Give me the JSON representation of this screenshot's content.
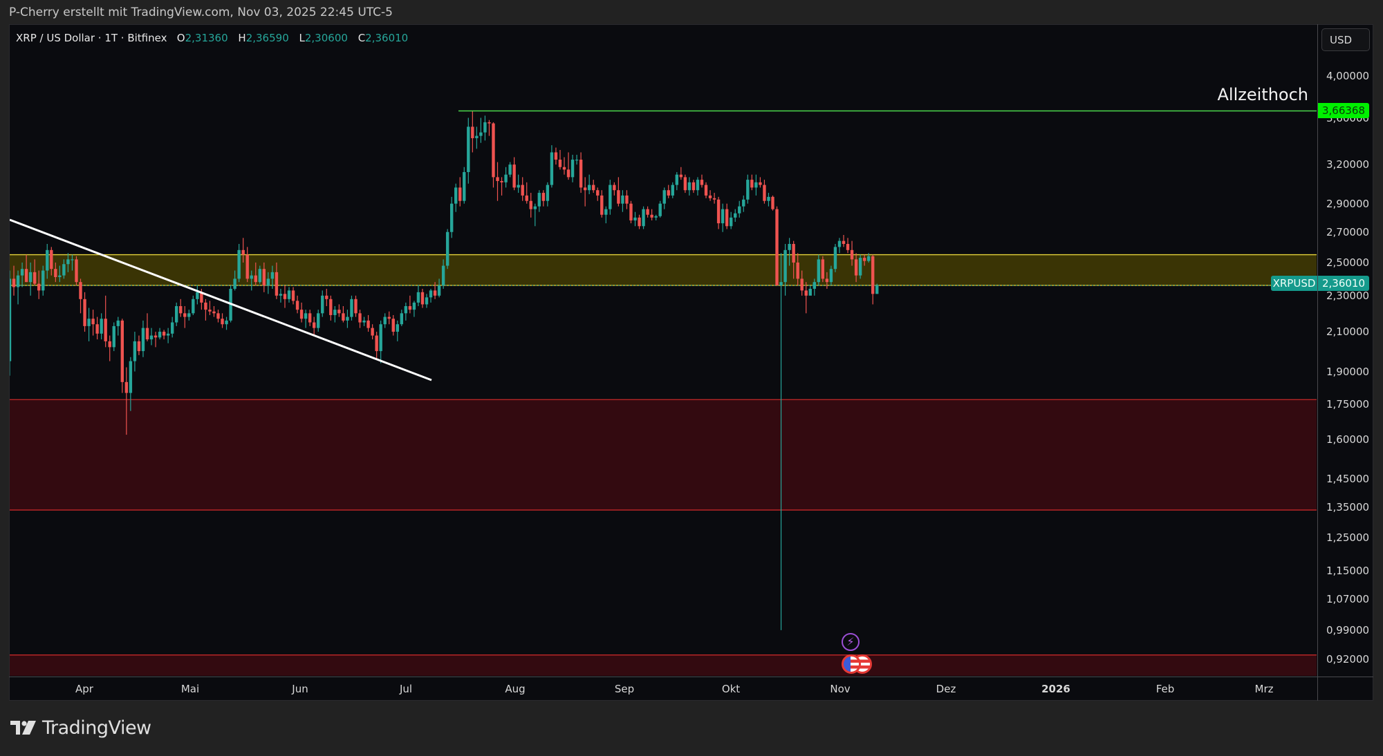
{
  "credit": "P-Cherry erstellt mit TradingView.com, Nov 03, 2025 22:45 UTC-5",
  "legend": {
    "title": "XRP / US Dollar · 1T · Bitfinex",
    "open_label": "O",
    "open": "2,31360",
    "high_label": "H",
    "high": "2,36590",
    "low_label": "L",
    "low": "2,30600",
    "close_label": "C",
    "close": "2,36010"
  },
  "currency_button": "USD",
  "annotation_ath": "Allzeithoch",
  "ath_price": "3,66368",
  "symbol_badge": "XRPUSD",
  "last_price": "2,36010",
  "footer_brand": "TradingView",
  "colors": {
    "up": "#26a69a",
    "down": "#ef5350",
    "ath_line": "#4cd94c",
    "zone_yellow": "#e6d43a",
    "zone_red": "#b71c1c",
    "trendline": "#ffffff"
  },
  "chart_data": {
    "type": "candlestick",
    "title": "XRP / US Dollar · 1T · Bitfinex",
    "scale": "log",
    "y_ticks": [
      "4,00000",
      "3,60000",
      "3,20000",
      "2,90000",
      "2,70000",
      "2,50000",
      "2,30000",
      "2,10000",
      "1,90000",
      "1,75000",
      "1,60000",
      "1,45000",
      "1,35000",
      "1,25000",
      "1,15000",
      "1,07000",
      "0,99000",
      "0,92000"
    ],
    "x_ticks": [
      "Apr",
      "Mai",
      "Jun",
      "Jul",
      "Aug",
      "Sep",
      "Okt",
      "Nov",
      "Dez",
      "2026",
      "Feb",
      "Mrz"
    ],
    "last": {
      "open": 2.3136,
      "high": 2.3659,
      "low": 2.306,
      "close": 2.3601
    },
    "all_time_high": 3.66368,
    "zones": [
      {
        "name": "yellow-support-zone",
        "top": 2.55,
        "bottom": 2.36
      },
      {
        "name": "red-demand-zone",
        "top": 1.77,
        "bottom": 1.34
      },
      {
        "name": "red-lower-zone",
        "top": 0.93,
        "bottom": 0.87
      }
    ],
    "trendline": {
      "from": {
        "date": "Mar 10",
        "price": 2.78
      },
      "to": {
        "date": "Jul 2",
        "price": 1.85
      }
    },
    "ohlc": [
      [
        1.95,
        2.45,
        1.88,
        2.4
      ],
      [
        2.4,
        2.48,
        2.3,
        2.35
      ],
      [
        2.35,
        2.45,
        2.25,
        2.42
      ],
      [
        2.42,
        2.5,
        2.35,
        2.46
      ],
      [
        2.46,
        2.55,
        2.38,
        2.38
      ],
      [
        2.38,
        2.5,
        2.3,
        2.44
      ],
      [
        2.44,
        2.52,
        2.36,
        2.37
      ],
      [
        2.37,
        2.45,
        2.28,
        2.33
      ],
      [
        2.33,
        2.48,
        2.3,
        2.45
      ],
      [
        2.45,
        2.62,
        2.4,
        2.58
      ],
      [
        2.58,
        2.6,
        2.42,
        2.46
      ],
      [
        2.46,
        2.5,
        2.38,
        2.41
      ],
      [
        2.41,
        2.48,
        2.38,
        2.42
      ],
      [
        2.42,
        2.52,
        2.4,
        2.49
      ],
      [
        2.49,
        2.56,
        2.44,
        2.52
      ],
      [
        2.52,
        2.55,
        2.45,
        2.52
      ],
      [
        2.52,
        2.54,
        2.36,
        2.38
      ],
      [
        2.38,
        2.4,
        2.2,
        2.28
      ],
      [
        2.28,
        2.32,
        2.1,
        2.13
      ],
      [
        2.13,
        2.23,
        2.05,
        2.17
      ],
      [
        2.17,
        2.22,
        2.08,
        2.14
      ],
      [
        2.14,
        2.18,
        2.06,
        2.09
      ],
      [
        2.09,
        2.2,
        2.06,
        2.17
      ],
      [
        2.17,
        2.3,
        2.02,
        2.05
      ],
      [
        2.05,
        2.08,
        1.95,
        2.02
      ],
      [
        2.02,
        2.15,
        2.0,
        2.13
      ],
      [
        2.13,
        2.18,
        2.08,
        2.16
      ],
      [
        2.16,
        2.17,
        1.8,
        1.85
      ],
      [
        1.85,
        1.92,
        1.62,
        1.8
      ],
      [
        1.8,
        1.97,
        1.72,
        1.95
      ],
      [
        1.95,
        2.1,
        1.9,
        2.05
      ],
      [
        2.05,
        2.08,
        1.98,
        2.0
      ],
      [
        2.0,
        2.16,
        1.97,
        2.12
      ],
      [
        2.12,
        2.2,
        2.05,
        2.06
      ],
      [
        2.06,
        2.12,
        2.03,
        2.08
      ],
      [
        2.08,
        2.1,
        2.02,
        2.07
      ],
      [
        2.07,
        2.12,
        2.06,
        2.1
      ],
      [
        2.1,
        2.11,
        2.06,
        2.08
      ],
      [
        2.08,
        2.12,
        2.04,
        2.09
      ],
      [
        2.09,
        2.18,
        2.07,
        2.15
      ],
      [
        2.15,
        2.26,
        2.13,
        2.24
      ],
      [
        2.24,
        2.28,
        2.18,
        2.2
      ],
      [
        2.2,
        2.24,
        2.12,
        2.18
      ],
      [
        2.18,
        2.22,
        2.16,
        2.2
      ],
      [
        2.2,
        2.3,
        2.19,
        2.28
      ],
      [
        2.28,
        2.36,
        2.25,
        2.32
      ],
      [
        2.32,
        2.34,
        2.22,
        2.26
      ],
      [
        2.26,
        2.28,
        2.16,
        2.22
      ],
      [
        2.22,
        2.27,
        2.19,
        2.21
      ],
      [
        2.21,
        2.24,
        2.18,
        2.2
      ],
      [
        2.2,
        2.22,
        2.15,
        2.17
      ],
      [
        2.17,
        2.2,
        2.12,
        2.14
      ],
      [
        2.14,
        2.18,
        2.11,
        2.16
      ],
      [
        2.16,
        2.36,
        2.15,
        2.34
      ],
      [
        2.34,
        2.45,
        2.33,
        2.4
      ],
      [
        2.4,
        2.62,
        2.38,
        2.58
      ],
      [
        2.58,
        2.66,
        2.5,
        2.55
      ],
      [
        2.55,
        2.6,
        2.38,
        2.4
      ],
      [
        2.4,
        2.45,
        2.33,
        2.42
      ],
      [
        2.42,
        2.5,
        2.36,
        2.38
      ],
      [
        2.38,
        2.48,
        2.37,
        2.46
      ],
      [
        2.46,
        2.5,
        2.32,
        2.36
      ],
      [
        2.36,
        2.44,
        2.31,
        2.4
      ],
      [
        2.4,
        2.48,
        2.34,
        2.44
      ],
      [
        2.44,
        2.5,
        2.28,
        2.3
      ],
      [
        2.3,
        2.34,
        2.26,
        2.31
      ],
      [
        2.31,
        2.36,
        2.23,
        2.28
      ],
      [
        2.28,
        2.35,
        2.26,
        2.33
      ],
      [
        2.33,
        2.35,
        2.25,
        2.27
      ],
      [
        2.27,
        2.3,
        2.2,
        2.22
      ],
      [
        2.22,
        2.26,
        2.15,
        2.17
      ],
      [
        2.17,
        2.22,
        2.12,
        2.2
      ],
      [
        2.2,
        2.22,
        2.13,
        2.15
      ],
      [
        2.15,
        2.18,
        2.08,
        2.12
      ],
      [
        2.12,
        2.22,
        2.1,
        2.2
      ],
      [
        2.2,
        2.33,
        2.18,
        2.3
      ],
      [
        2.3,
        2.34,
        2.24,
        2.28
      ],
      [
        2.28,
        2.3,
        2.16,
        2.19
      ],
      [
        2.19,
        2.24,
        2.15,
        2.22
      ],
      [
        2.22,
        2.25,
        2.18,
        2.2
      ],
      [
        2.2,
        2.24,
        2.15,
        2.16
      ],
      [
        2.16,
        2.22,
        2.12,
        2.18
      ],
      [
        2.18,
        2.3,
        2.16,
        2.28
      ],
      [
        2.28,
        2.3,
        2.18,
        2.2
      ],
      [
        2.2,
        2.22,
        2.12,
        2.15
      ],
      [
        2.15,
        2.18,
        2.13,
        2.16
      ],
      [
        2.16,
        2.19,
        2.1,
        2.12
      ],
      [
        2.12,
        2.14,
        2.06,
        2.08
      ],
      [
        2.08,
        2.1,
        1.96,
        2.0
      ],
      [
        2.0,
        2.16,
        1.94,
        2.14
      ],
      [
        2.14,
        2.2,
        2.12,
        2.18
      ],
      [
        2.18,
        2.21,
        2.14,
        2.17
      ],
      [
        2.17,
        2.19,
        2.08,
        2.1
      ],
      [
        2.1,
        2.16,
        2.05,
        2.14
      ],
      [
        2.14,
        2.22,
        2.13,
        2.2
      ],
      [
        2.2,
        2.26,
        2.16,
        2.24
      ],
      [
        2.24,
        2.3,
        2.2,
        2.22
      ],
      [
        2.22,
        2.27,
        2.18,
        2.26
      ],
      [
        2.26,
        2.36,
        2.24,
        2.32
      ],
      [
        2.32,
        2.34,
        2.23,
        2.25
      ],
      [
        2.25,
        2.31,
        2.23,
        2.29
      ],
      [
        2.29,
        2.34,
        2.26,
        2.33
      ],
      [
        2.33,
        2.38,
        2.28,
        2.3
      ],
      [
        2.3,
        2.4,
        2.29,
        2.36
      ],
      [
        2.36,
        2.52,
        2.34,
        2.48
      ],
      [
        2.48,
        2.72,
        2.46,
        2.7
      ],
      [
        2.7,
        2.95,
        2.66,
        2.9
      ],
      [
        2.9,
        3.05,
        2.84,
        3.02
      ],
      [
        3.02,
        3.1,
        2.88,
        2.92
      ],
      [
        2.92,
        3.18,
        2.9,
        3.14
      ],
      [
        3.14,
        3.6,
        3.05,
        3.52
      ],
      [
        3.52,
        3.66,
        3.3,
        3.42
      ],
      [
        3.42,
        3.52,
        3.33,
        3.44
      ],
      [
        3.44,
        3.6,
        3.38,
        3.47
      ],
      [
        3.47,
        3.62,
        3.4,
        3.56
      ],
      [
        3.56,
        3.58,
        3.44,
        3.55
      ],
      [
        3.55,
        3.56,
        3.02,
        3.1
      ],
      [
        3.1,
        3.22,
        2.92,
        3.07
      ],
      [
        3.07,
        3.1,
        2.96,
        3.06
      ],
      [
        3.06,
        3.18,
        3.02,
        3.12
      ],
      [
        3.12,
        3.22,
        3.1,
        3.2
      ],
      [
        3.2,
        3.26,
        3.0,
        3.02
      ],
      [
        3.02,
        3.12,
        2.98,
        3.04
      ],
      [
        3.04,
        3.1,
        2.92,
        2.96
      ],
      [
        2.96,
        3.06,
        2.9,
        2.92
      ],
      [
        2.92,
        2.98,
        2.8,
        2.86
      ],
      [
        2.86,
        2.9,
        2.74,
        2.88
      ],
      [
        2.88,
        3.0,
        2.84,
        2.98
      ],
      [
        2.98,
        3.0,
        2.88,
        2.92
      ],
      [
        2.92,
        3.06,
        2.88,
        3.04
      ],
      [
        3.04,
        3.36,
        3.02,
        3.3
      ],
      [
        3.3,
        3.34,
        3.2,
        3.24
      ],
      [
        3.24,
        3.32,
        3.16,
        3.18
      ],
      [
        3.18,
        3.26,
        3.12,
        3.16
      ],
      [
        3.16,
        3.3,
        3.08,
        3.1
      ],
      [
        3.1,
        3.28,
        3.06,
        3.24
      ],
      [
        3.24,
        3.28,
        3.2,
        3.24
      ],
      [
        3.24,
        3.3,
        2.98,
        3.02
      ],
      [
        3.02,
        3.1,
        2.88,
        3.0
      ],
      [
        3.0,
        3.12,
        2.97,
        3.04
      ],
      [
        3.04,
        3.08,
        2.98,
        3.0
      ],
      [
        3.0,
        3.02,
        2.92,
        2.96
      ],
      [
        2.96,
        3.0,
        2.8,
        2.82
      ],
      [
        2.82,
        2.88,
        2.76,
        2.86
      ],
      [
        2.86,
        3.08,
        2.82,
        3.04
      ],
      [
        3.04,
        3.06,
        2.96,
        3.0
      ],
      [
        3.0,
        3.1,
        2.88,
        2.9
      ],
      [
        2.9,
        3.0,
        2.84,
        2.96
      ],
      [
        2.96,
        3.0,
        2.86,
        2.9
      ],
      [
        2.9,
        2.92,
        2.76,
        2.78
      ],
      [
        2.78,
        2.84,
        2.74,
        2.8
      ],
      [
        2.8,
        2.82,
        2.72,
        2.74
      ],
      [
        2.74,
        2.88,
        2.72,
        2.86
      ],
      [
        2.86,
        2.88,
        2.8,
        2.82
      ],
      [
        2.82,
        2.86,
        2.78,
        2.8
      ],
      [
        2.8,
        2.82,
        2.78,
        2.81
      ],
      [
        2.81,
        2.92,
        2.8,
        2.9
      ],
      [
        2.9,
        3.02,
        2.86,
        3.0
      ],
      [
        3.0,
        3.04,
        2.94,
        2.96
      ],
      [
        2.96,
        3.06,
        2.94,
        3.04
      ],
      [
        3.04,
        3.14,
        3.0,
        3.12
      ],
      [
        3.12,
        3.18,
        3.08,
        3.1
      ],
      [
        3.1,
        3.12,
        2.98,
        3.0
      ],
      [
        3.0,
        3.1,
        2.96,
        3.06
      ],
      [
        3.06,
        3.08,
        2.98,
        3.0
      ],
      [
        3.0,
        3.1,
        2.96,
        3.08
      ],
      [
        3.08,
        3.12,
        3.02,
        3.04
      ],
      [
        3.04,
        3.06,
        2.94,
        2.96
      ],
      [
        2.96,
        3.0,
        2.92,
        2.94
      ],
      [
        2.94,
        2.98,
        2.9,
        2.93
      ],
      [
        2.93,
        2.95,
        2.72,
        2.76
      ],
      [
        2.76,
        2.9,
        2.7,
        2.86
      ],
      [
        2.86,
        2.9,
        2.72,
        2.74
      ],
      [
        2.74,
        2.84,
        2.72,
        2.8
      ],
      [
        2.8,
        2.86,
        2.77,
        2.83
      ],
      [
        2.83,
        2.92,
        2.8,
        2.88
      ],
      [
        2.88,
        2.96,
        2.84,
        2.93
      ],
      [
        2.93,
        3.12,
        2.9,
        3.08
      ],
      [
        3.08,
        3.12,
        3.0,
        3.02
      ],
      [
        3.02,
        3.12,
        2.96,
        3.06
      ],
      [
        3.06,
        3.1,
        3.02,
        3.04
      ],
      [
        3.04,
        3.08,
        2.9,
        2.92
      ],
      [
        2.92,
        2.98,
        2.88,
        2.95
      ],
      [
        2.95,
        2.96,
        2.85,
        2.86
      ],
      [
        2.86,
        2.88,
        2.7,
        2.36
      ],
      [
        2.36,
        2.56,
        0.99,
        2.38
      ],
      [
        2.38,
        2.62,
        2.3,
        2.58
      ],
      [
        2.58,
        2.66,
        2.48,
        2.62
      ],
      [
        2.62,
        2.64,
        2.4,
        2.5
      ],
      [
        2.5,
        2.56,
        2.36,
        2.4
      ],
      [
        2.4,
        2.45,
        2.3,
        2.33
      ],
      [
        2.33,
        2.38,
        2.2,
        2.3
      ],
      [
        2.3,
        2.36,
        2.32,
        2.34
      ],
      [
        2.34,
        2.4,
        2.3,
        2.38
      ],
      [
        2.38,
        2.55,
        2.36,
        2.52
      ],
      [
        2.52,
        2.54,
        2.38,
        2.4
      ],
      [
        2.4,
        2.44,
        2.34,
        2.38
      ],
      [
        2.38,
        2.48,
        2.36,
        2.46
      ],
      [
        2.46,
        2.62,
        2.44,
        2.6
      ],
      [
        2.6,
        2.66,
        2.56,
        2.64
      ],
      [
        2.64,
        2.68,
        2.6,
        2.62
      ],
      [
        2.62,
        2.66,
        2.56,
        2.58
      ],
      [
        2.58,
        2.64,
        2.48,
        2.52
      ],
      [
        2.52,
        2.56,
        2.38,
        2.42
      ],
      [
        2.42,
        2.55,
        2.4,
        2.53
      ],
      [
        2.53,
        2.55,
        2.48,
        2.51
      ],
      [
        2.51,
        2.56,
        2.5,
        2.54
      ],
      [
        2.54,
        2.55,
        2.25,
        2.31
      ],
      [
        2.31,
        2.37,
        2.31,
        2.36
      ]
    ]
  }
}
